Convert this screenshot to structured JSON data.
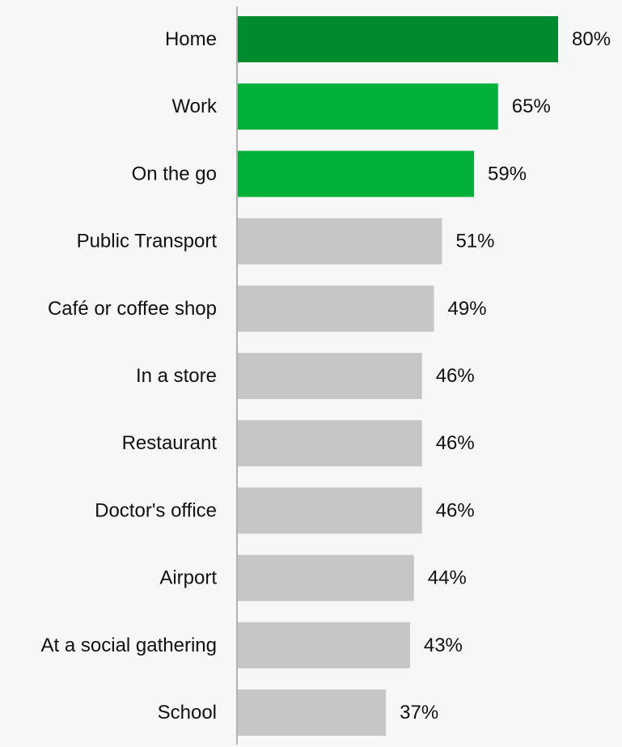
{
  "chart_data": {
    "type": "bar",
    "orientation": "horizontal",
    "categories": [
      "Home",
      "Work",
      "On the go",
      "Public Transport",
      "Café or coffee shop",
      "In a store",
      "Restaurant",
      "Doctor's office",
      "Airport",
      "At a social gathering",
      "School"
    ],
    "values": [
      80,
      65,
      59,
      51,
      49,
      46,
      46,
      46,
      44,
      43,
      37
    ],
    "value_labels": [
      "80%",
      "65%",
      "59%",
      "51%",
      "49%",
      "46%",
      "46%",
      "46%",
      "44%",
      "43%",
      "37%"
    ],
    "bar_colors": [
      "#008c2e",
      "#00b03a",
      "#00b03a",
      "#c6c6c6",
      "#c6c6c6",
      "#c6c6c6",
      "#c6c6c6",
      "#c6c6c6",
      "#c6c6c6",
      "#c6c6c6",
      "#c6c6c6"
    ],
    "xlim": [
      0,
      100
    ],
    "title": "",
    "xlabel": "",
    "ylabel": "",
    "grid": false,
    "legend": "none",
    "axis_color": "#999999",
    "background": "#f7f7f7"
  }
}
